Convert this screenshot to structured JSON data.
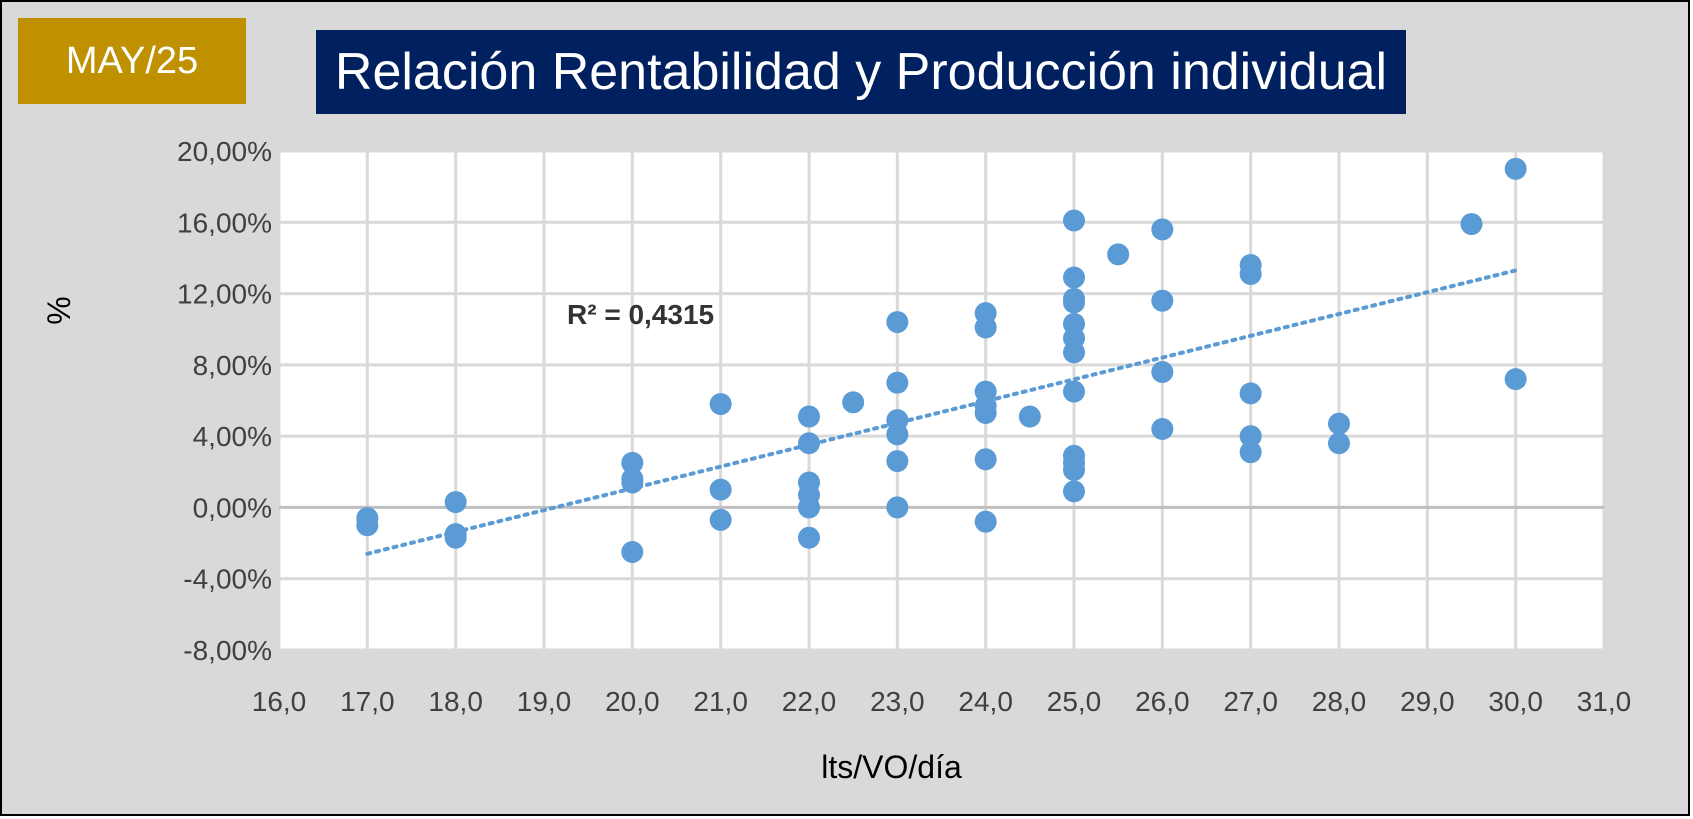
{
  "badge": "MAY/25",
  "colors": {
    "background": "#d9d9d9",
    "badge": "#bf9000",
    "title_box": "#002060",
    "point": "#5b9bd5",
    "grid": "#d9d9d9",
    "zero_line": "#bfbfbf"
  },
  "chart_data": {
    "type": "scatter",
    "title": "Relación Rentabilidad y Producción individual",
    "xlabel": "lts/VO/día",
    "ylabel": "%",
    "xlim": [
      16,
      31
    ],
    "ylim": [
      -8,
      20
    ],
    "x_ticks": [
      16,
      17,
      18,
      19,
      20,
      21,
      22,
      23,
      24,
      25,
      26,
      27,
      28,
      29,
      30,
      31
    ],
    "x_tick_labels": [
      "16,0",
      "17,0",
      "18,0",
      "19,0",
      "20,0",
      "21,0",
      "22,0",
      "23,0",
      "24,0",
      "25,0",
      "26,0",
      "27,0",
      "28,0",
      "29,0",
      "30,0",
      "31,0"
    ],
    "y_ticks": [
      20,
      16,
      12,
      8,
      4,
      0,
      -4,
      -8
    ],
    "y_tick_labels": [
      "20,00%",
      "16,00%",
      "12,00%",
      "8,00%",
      "4,00%",
      "0,00%",
      "-4,00%",
      "-8,00%"
    ],
    "grid": true,
    "trendline": {
      "type": "linear",
      "style": "dotted",
      "x_range": [
        17,
        30
      ],
      "y_start": -2.6,
      "y_end": 13.3,
      "label": "R² = 0,4315"
    },
    "points": [
      {
        "x": 17,
        "y": -0.6
      },
      {
        "x": 17,
        "y": -1.0
      },
      {
        "x": 18,
        "y": 0.3
      },
      {
        "x": 18,
        "y": -1.5
      },
      {
        "x": 18,
        "y": -1.7
      },
      {
        "x": 20,
        "y": 2.5
      },
      {
        "x": 20,
        "y": 1.6
      },
      {
        "x": 20,
        "y": 1.4
      },
      {
        "x": 20,
        "y": -2.5
      },
      {
        "x": 21,
        "y": 5.8
      },
      {
        "x": 21,
        "y": 1.0
      },
      {
        "x": 21,
        "y": -0.7
      },
      {
        "x": 22,
        "y": 5.1
      },
      {
        "x": 22,
        "y": 3.6
      },
      {
        "x": 22,
        "y": 1.4
      },
      {
        "x": 22,
        "y": 0.7
      },
      {
        "x": 22,
        "y": 0.0
      },
      {
        "x": 22,
        "y": -1.7
      },
      {
        "x": 22.5,
        "y": 5.9
      },
      {
        "x": 23,
        "y": 10.4
      },
      {
        "x": 23,
        "y": 7.0
      },
      {
        "x": 23,
        "y": 4.9
      },
      {
        "x": 23,
        "y": 4.1
      },
      {
        "x": 23,
        "y": 2.6
      },
      {
        "x": 23,
        "y": 0.0
      },
      {
        "x": 24,
        "y": 10.9
      },
      {
        "x": 24,
        "y": 10.1
      },
      {
        "x": 24,
        "y": 6.5
      },
      {
        "x": 24,
        "y": 5.7
      },
      {
        "x": 24,
        "y": 5.3
      },
      {
        "x": 24,
        "y": 2.7
      },
      {
        "x": 24,
        "y": -0.8
      },
      {
        "x": 24.5,
        "y": 5.1
      },
      {
        "x": 25,
        "y": 16.1
      },
      {
        "x": 25,
        "y": 12.9
      },
      {
        "x": 25,
        "y": 11.7
      },
      {
        "x": 25,
        "y": 11.5
      },
      {
        "x": 25,
        "y": 10.3
      },
      {
        "x": 25,
        "y": 9.5
      },
      {
        "x": 25,
        "y": 8.7
      },
      {
        "x": 25,
        "y": 6.5
      },
      {
        "x": 25,
        "y": 2.9
      },
      {
        "x": 25,
        "y": 2.5
      },
      {
        "x": 25,
        "y": 2.1
      },
      {
        "x": 25,
        "y": 0.9
      },
      {
        "x": 25.5,
        "y": 14.2
      },
      {
        "x": 26,
        "y": 15.6
      },
      {
        "x": 26,
        "y": 11.6
      },
      {
        "x": 26,
        "y": 7.6
      },
      {
        "x": 26,
        "y": 4.4
      },
      {
        "x": 27,
        "y": 13.6
      },
      {
        "x": 27,
        "y": 13.1
      },
      {
        "x": 27,
        "y": 6.4
      },
      {
        "x": 27,
        "y": 4.0
      },
      {
        "x": 27,
        "y": 3.1
      },
      {
        "x": 28,
        "y": 4.7
      },
      {
        "x": 28,
        "y": 3.6
      },
      {
        "x": 29.5,
        "y": 15.9
      },
      {
        "x": 30,
        "y": 19.0
      },
      {
        "x": 30,
        "y": 7.2
      }
    ]
  }
}
